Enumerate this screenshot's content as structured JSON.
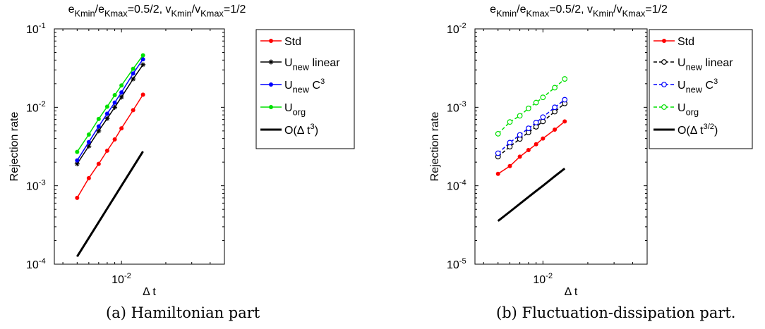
{
  "chart_data": [
    {
      "type": "line",
      "title_parts": [
        "e",
        "Kmin",
        "/e",
        "Kmax",
        "=0.5/2, v",
        "Kmin",
        "/v",
        "Kmax",
        "=1/2"
      ],
      "xlabel": "Δ t",
      "ylabel": "Rejection rate",
      "xscale": "log",
      "yscale": "log",
      "xlim": [
        0.0035,
        0.05
      ],
      "ylim": [
        0.0001,
        0.1
      ],
      "yticks": [
        {
          "mant": "10",
          "exp": "-4"
        },
        {
          "mant": "10",
          "exp": "-3"
        },
        {
          "mant": "10",
          "exp": "-2"
        },
        {
          "mant": "10",
          "exp": "-1"
        }
      ],
      "xticks": [
        {
          "mant": "10",
          "exp": "-2"
        }
      ],
      "grid": false,
      "legend_position": "top-right",
      "x": [
        0.005,
        0.006,
        0.007,
        0.008,
        0.009,
        0.01,
        0.012,
        0.014
      ],
      "series": [
        {
          "name": "Std",
          "legend_parts": [
            "Std"
          ],
          "color": "#ff0000",
          "marker": "dot",
          "dash": "solid",
          "values": [
            0.0007,
            0.00125,
            0.0019,
            0.0028,
            0.0039,
            0.0054,
            0.0092,
            0.0145
          ]
        },
        {
          "name": "U new linear",
          "legend_parts": [
            "U",
            "new",
            " linear"
          ],
          "color": "#000000",
          "marker": "star",
          "dash": "solid",
          "values": [
            0.0019,
            0.0032,
            0.005,
            0.0072,
            0.01,
            0.0135,
            0.023,
            0.035
          ]
        },
        {
          "name": "U new C3",
          "legend_parts": [
            "U",
            "new",
            " C",
            "3"
          ],
          "color": "#0000ff",
          "marker": "dot",
          "dash": "solid",
          "values": [
            0.0021,
            0.0036,
            0.0057,
            0.0083,
            0.0115,
            0.0155,
            0.027,
            0.041
          ]
        },
        {
          "name": "U org",
          "legend_parts": [
            "U",
            "org"
          ],
          "color": "#00e000",
          "marker": "dot",
          "dash": "solid",
          "values": [
            0.0027,
            0.0045,
            0.0071,
            0.0102,
            0.0143,
            0.019,
            0.031,
            0.046
          ]
        },
        {
          "name": "O(Δ t3)",
          "legend_parts": [
            "O(Δ t",
            "3",
            ")"
          ],
          "color": "#000000",
          "marker": "none",
          "dash": "solid",
          "thick": true,
          "values": [
            0.000125,
            0.000216,
            0.000343,
            0.000512,
            0.000729,
            0.001,
            0.00173,
            0.00274
          ]
        }
      ]
    },
    {
      "type": "line",
      "title_parts": [
        "e",
        "Kmin",
        "/e",
        "Kmax",
        "=0.5/2, v",
        "Kmin",
        "/v",
        "Kmax",
        "=1/2"
      ],
      "xlabel": "Δ t",
      "ylabel": "Rejection rate",
      "xscale": "log",
      "yscale": "log",
      "xlim": [
        0.0035,
        0.05
      ],
      "ylim": [
        1e-05,
        0.01
      ],
      "yticks": [
        {
          "mant": "10",
          "exp": "-5"
        },
        {
          "mant": "10",
          "exp": "-4"
        },
        {
          "mant": "10",
          "exp": "-3"
        },
        {
          "mant": "10",
          "exp": "-2"
        }
      ],
      "xticks": [
        {
          "mant": "10",
          "exp": "-2"
        }
      ],
      "grid": false,
      "legend_position": "top-right",
      "x": [
        0.005,
        0.006,
        0.007,
        0.008,
        0.009,
        0.01,
        0.012,
        0.014
      ],
      "series": [
        {
          "name": "Std",
          "legend_parts": [
            "Std"
          ],
          "color": "#ff0000",
          "marker": "dot",
          "dash": "solid",
          "values": [
            0.000142,
            0.000178,
            0.000235,
            0.000285,
            0.000338,
            0.0004,
            0.00052,
            0.00066
          ]
        },
        {
          "name": "U new linear",
          "legend_parts": [
            "U",
            "new",
            " linear"
          ],
          "color": "#000000",
          "marker": "circle",
          "dash": "dashed",
          "values": [
            0.000235,
            0.000315,
            0.000395,
            0.00048,
            0.000565,
            0.00066,
            0.00088,
            0.00112
          ]
        },
        {
          "name": "U new C3",
          "legend_parts": [
            "U",
            "new",
            " C",
            "3"
          ],
          "color": "#0000ff",
          "marker": "circle",
          "dash": "dashed",
          "values": [
            0.00026,
            0.000355,
            0.000445,
            0.00054,
            0.00064,
            0.00075,
            0.001,
            0.00125
          ]
        },
        {
          "name": "U org",
          "legend_parts": [
            "U",
            "org"
          ],
          "color": "#00e000",
          "marker": "circle",
          "dash": "dashed",
          "values": [
            0.00046,
            0.00065,
            0.00078,
            0.00097,
            0.00115,
            0.00134,
            0.00178,
            0.0023
          ]
        },
        {
          "name": "O(Δ t3/2)",
          "legend_parts": [
            "O(Δ t",
            "3/2",
            ")"
          ],
          "color": "#000000",
          "marker": "none",
          "dash": "solid",
          "thick": true,
          "values": [
            3.55e-05,
            4.67e-05,
            5.88e-05,
            7.19e-05,
            8.58e-05,
            0.0001,
            0.000132,
            0.000166
          ]
        }
      ]
    }
  ],
  "captions": {
    "a": "(a) Hamiltonian part",
    "b": "(b) Fluctuation-dissipation part."
  }
}
